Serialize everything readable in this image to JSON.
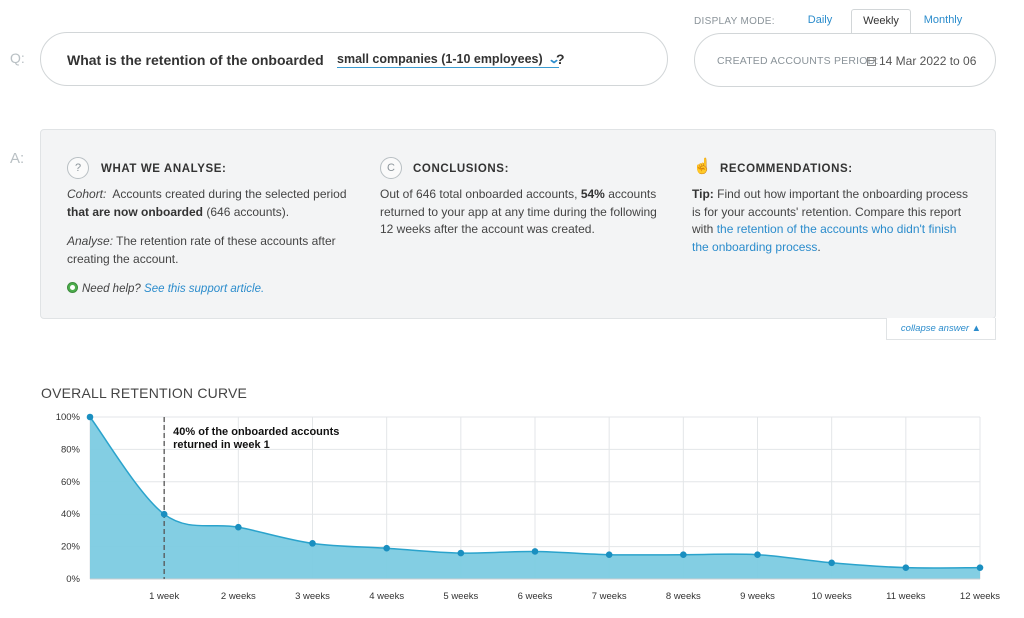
{
  "labels": {
    "q": "Q:",
    "a": "A:"
  },
  "question": {
    "prefix": "What is the retention of the onboarded",
    "segment": "small companies (1-10 employees)",
    "suffix": "?"
  },
  "display_mode": {
    "label": "DISPLAY MODE:",
    "tabs": [
      "Daily",
      "Weekly",
      "Monthly"
    ],
    "active": "Weekly"
  },
  "period": {
    "label": "CREATED ACCOUNTS PERIOD:",
    "value": "14 Mar 2022 to 06"
  },
  "answer": {
    "analyse": {
      "icon": "?",
      "title": "WHAT WE ANALYSE:",
      "cohort_label": "Cohort:",
      "cohort_text_1": "Accounts created during the selected period",
      "cohort_bold": "that are now onboarded",
      "cohort_text_2": "(646 accounts).",
      "analyse_label": "Analyse:",
      "analyse_text": "The retention rate of these accounts after creating the account.",
      "help_label": "Need help?",
      "help_link": "See this support article."
    },
    "conclusions": {
      "icon": "C",
      "title": "CONCLUSIONS:",
      "text_1": "Out of 646 total onboarded accounts,",
      "bold": "54%",
      "text_2": "accounts returned to your app at any time during the following 12 weeks after the account was created."
    },
    "recommendations": {
      "icon": "hand-pointer-icon",
      "title": "RECOMMENDATIONS:",
      "tip_label": "Tip:",
      "text": "Find out how important the onboarding process is for your accounts' retention. Compare this report with",
      "link": "the retention of the accounts who didn't finish the onboarding process",
      "end": "."
    },
    "collapse": "collapse answer"
  },
  "chart_title": "OVERALL RETENTION CURVE",
  "colors": {
    "accent": "#2b8ccc",
    "area_fill": "#7ccbe1",
    "line": "#2aa3cc",
    "point": "#1a8fc0"
  },
  "chart_data": {
    "type": "area",
    "x": [
      "",
      "1 week",
      "2 weeks",
      "3 weeks",
      "4 weeks",
      "5 weeks",
      "6 weeks",
      "7 weeks",
      "8 weeks",
      "9 weeks",
      "10 weeks",
      "11 weeks",
      "12 weeks"
    ],
    "values": [
      100,
      40,
      32,
      22,
      19,
      16,
      17,
      15,
      15,
      15,
      10,
      7,
      7
    ],
    "ylim": [
      0,
      100
    ],
    "yticks": [
      "0%",
      "20%",
      "40%",
      "60%",
      "80%",
      "100%"
    ],
    "grid": true,
    "annotation": {
      "x": "1 week",
      "line_1": "40% of the onboarded accounts",
      "line_2": "returned in week 1"
    }
  }
}
